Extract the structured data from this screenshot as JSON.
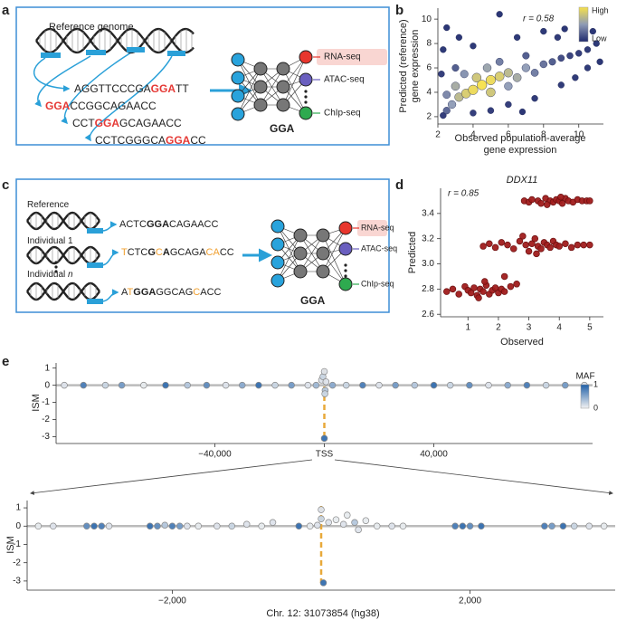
{
  "panels": {
    "a": {
      "letter": "a",
      "reference_label": "Reference genome",
      "sequences": [
        [
          {
            "text": "AGGTTCCCGA"
          },
          {
            "text": "GGA",
            "color": "#e53935",
            "bold": true
          },
          {
            "text": "TT"
          }
        ],
        [
          {
            "text": "GGA",
            "color": "#e53935",
            "bold": true
          },
          {
            "text": "CCGGCAGAACC"
          }
        ],
        [
          {
            "text": "CCT"
          },
          {
            "text": "GGA",
            "color": "#e53935",
            "bold": true
          },
          {
            "text": "GCAGAACC"
          }
        ],
        [
          {
            "text": "CCTCGGGCA"
          },
          {
            "text": "GGA",
            "color": "#e53935",
            "bold": true
          },
          {
            "text": "CC"
          }
        ]
      ],
      "outputs": [
        "RNA-seq",
        "ATAC-seq",
        "ChIp-seq"
      ],
      "output_colors": [
        "#e8362d",
        "#6a5fbf",
        "#2eaa4f"
      ],
      "logo": "GGA"
    },
    "c": {
      "letter": "c",
      "rows": [
        {
          "label": [
            {
              "text": "Reference"
            }
          ],
          "sequence": [
            {
              "text": "ACTC"
            },
            {
              "text": "GGA",
              "bold": true
            },
            {
              "text": "CAGAACC"
            }
          ]
        },
        {
          "label": [
            {
              "text": "Individual 1"
            }
          ],
          "sequence": [
            {
              "text": "T",
              "color": "#f0a030"
            },
            {
              "text": "CTC"
            },
            {
              "text": "G",
              "bold": true
            },
            {
              "text": "C",
              "color": "#f0a030"
            },
            {
              "text": "A",
              "bold": true
            },
            {
              "text": "GCAGA"
            },
            {
              "text": "CA",
              "color": "#f0a030"
            },
            {
              "text": "CC"
            }
          ]
        },
        {
          "label": [
            {
              "text": "Individual "
            },
            {
              "text": "n",
              "italic": true
            }
          ],
          "sequence": [
            {
              "text": "A"
            },
            {
              "text": "T",
              "color": "#f0a030"
            },
            {
              "text": "GGA",
              "bold": true
            },
            {
              "text": "GGCAG"
            },
            {
              "text": "C",
              "color": "#f0a030"
            },
            {
              "text": "ACC"
            }
          ]
        }
      ],
      "outputs": [
        "RNA-seq",
        "ATAC-seq",
        "ChIp-seq"
      ],
      "output_colors": [
        "#e8362d",
        "#6a5fbf",
        "#2eaa4f"
      ],
      "logo": "GGA"
    }
  },
  "chart_data": [
    {
      "type": "scatter",
      "panel_label": "b",
      "x_label": [
        "Observed population-average",
        "gene expression"
      ],
      "y_label": [
        "Predicted (reference)",
        "gene expression"
      ],
      "annotation": "r = 0.58",
      "xlim": [
        2,
        11.4
      ],
      "ylim": [
        1.4,
        10.9
      ],
      "xticks": [
        2,
        4,
        6,
        8,
        10
      ],
      "yticks": [
        2,
        4,
        6,
        8,
        10
      ],
      "colorbar": {
        "high": "High",
        "low": "Low",
        "colors": [
          "#1f2a6e",
          "#8e9bb5",
          "#f6e04b"
        ]
      },
      "x": [
        5.5,
        3.2,
        2.5,
        11.2,
        10.8,
        6.8,
        9.2,
        8,
        11,
        4,
        2.3,
        8.8,
        10.5,
        10.5,
        9.8,
        7.5,
        9,
        6.5,
        2.3,
        2.2,
        4,
        6,
        5,
        10,
        9.5,
        9,
        8.5,
        2.5,
        3,
        7,
        8,
        2.5,
        7.5,
        5.5,
        3.5,
        2.8,
        7,
        6,
        4.8,
        3,
        6.5,
        3.2,
        6,
        4.2,
        5,
        3.6,
        5.5,
        4,
        5,
        4.5
      ],
      "values": [
        10.4,
        8.5,
        9.3,
        6.5,
        9,
        2.4,
        9.2,
        9,
        8,
        7.8,
        7.5,
        8.5,
        7.5,
        6,
        5.2,
        3.5,
        4.6,
        8.5,
        2.1,
        5.5,
        2.3,
        3,
        2.5,
        7.2,
        7,
        6.8,
        6.5,
        2.5,
        6,
        7,
        6.3,
        3.8,
        5.6,
        6.5,
        5.5,
        3,
        6,
        4.5,
        6,
        4.5,
        5.2,
        3.6,
        5.6,
        5.2,
        4,
        3.9,
        5.3,
        4.2,
        5,
        4.6
      ],
      "density": [
        0.01,
        0.01,
        0.01,
        0.01,
        0.01,
        0.01,
        0.01,
        0.02,
        0.02,
        0.02,
        0.02,
        0.03,
        0.03,
        0.03,
        0.03,
        0.03,
        0.03,
        0.02,
        0.05,
        0.05,
        0.05,
        0.05,
        0.05,
        0.05,
        0.08,
        0.12,
        0.2,
        0.25,
        0.2,
        0.2,
        0.3,
        0.4,
        0.35,
        0.35,
        0.45,
        0.5,
        0.5,
        0.5,
        0.55,
        0.6,
        0.6,
        0.7,
        0.7,
        0.8,
        0.8,
        0.85,
        0.85,
        0.95,
        0.95,
        1
      ]
    },
    {
      "type": "scatter",
      "panel_label": "d",
      "title": "DDX11",
      "x_label": [
        "Observed"
      ],
      "y_label": [
        "Predicted"
      ],
      "annotation": "r = 0.85",
      "color": "#a01c1c",
      "xlim": [
        0.1,
        5.45
      ],
      "ylim": [
        2.58,
        3.6
      ],
      "xticks": [
        1,
        2,
        3,
        4,
        5
      ],
      "yticks": [
        2.6,
        2.8,
        {
          "value": 3,
          "label": "3.0"
        },
        3.2,
        3.4
      ],
      "x": [
        2.85,
        3.0,
        3.1,
        3.3,
        3.4,
        3.55,
        3.7,
        3.8,
        3.9,
        4.0,
        4.1,
        4.2,
        4.3,
        4.45,
        4.6,
        4.75,
        4.9,
        5.0,
        3.6,
        4.05,
        1.5,
        1.7,
        1.9,
        2.1,
        2.3,
        2.5,
        2.7,
        2.9,
        3.0,
        3.1,
        3.2,
        3.3,
        3.4,
        3.5,
        3.6,
        3.7,
        3.8,
        3.9,
        4.0,
        4.2,
        4.4,
        4.6,
        4.8,
        5.0,
        3.25,
        2.8,
        0.3,
        0.5,
        0.7,
        0.9,
        1.0,
        1.1,
        1.2,
        1.3,
        1.4,
        1.5,
        1.6,
        1.7,
        1.8,
        1.9,
        2.0,
        2.1,
        2.2,
        2.4,
        2.6,
        1.35,
        1.55,
        2.2
      ],
      "values": [
        3.5,
        3.49,
        3.51,
        3.5,
        3.48,
        3.52,
        3.5,
        3.49,
        3.51,
        3.5,
        3.48,
        3.52,
        3.5,
        3.49,
        3.51,
        3.5,
        3.5,
        3.5,
        3.47,
        3.53,
        3.14,
        3.16,
        3.13,
        3.17,
        3.15,
        3.12,
        3.18,
        3.15,
        3.1,
        3.16,
        3.2,
        3.14,
        3.12,
        3.17,
        3.15,
        3.13,
        3.18,
        3.15,
        3.14,
        3.16,
        3.13,
        3.15,
        3.15,
        3.15,
        3.08,
        3.22,
        2.78,
        2.8,
        2.76,
        2.82,
        2.79,
        2.77,
        2.81,
        2.75,
        2.8,
        2.78,
        2.83,
        2.76,
        2.79,
        2.81,
        2.77,
        2.8,
        2.9,
        2.82,
        2.84,
        2.73,
        2.86,
        2.78
      ]
    },
    {
      "type": "scatter",
      "panel_label": "e",
      "y_label": [
        "ISM"
      ],
      "xlim": [
        -98000,
        98000
      ],
      "ylim": [
        -3.4,
        1.3
      ],
      "xticks": [
        {
          "value": -40000,
          "label": "−40,000"
        },
        {
          "value": 0,
          "label": "TSS"
        },
        {
          "value": 40000,
          "label": "40,000"
        }
      ],
      "yticks": [
        -3,
        -2,
        -1,
        0,
        1
      ],
      "colorbar": {
        "title": "MAF",
        "ticks": [
          0,
          1
        ],
        "colors": [
          "#f2f2f2",
          "#1f5fa8"
        ]
      },
      "x": [
        -95000,
        -88000,
        -80000,
        -74000,
        -66000,
        -58000,
        -50000,
        -43000,
        -36000,
        -30000,
        -24000,
        -18000,
        -12000,
        -6000,
        -3000,
        -1000,
        -500,
        0,
        300,
        600,
        0,
        200,
        3000,
        8000,
        14000,
        20000,
        26000,
        33000,
        40000,
        46000,
        53000,
        60000,
        67000,
        74000,
        81000,
        88000,
        95000
      ],
      "values": [
        0,
        0,
        0,
        0,
        0,
        0,
        0,
        0,
        0,
        0,
        0,
        0,
        0,
        0,
        0,
        0.3,
        0.5,
        0.8,
        -0.3,
        0.2,
        -3.1,
        -0.5,
        0,
        0,
        0,
        0,
        0,
        0,
        0,
        0,
        0,
        0,
        0,
        0,
        0,
        0,
        0
      ],
      "maf": [
        0.1,
        0.8,
        0.2,
        0.6,
        0.05,
        0.9,
        0.3,
        0.7,
        0.1,
        0.5,
        0.9,
        0.2,
        0.6,
        0.1,
        0.4,
        0.1,
        0.2,
        0.1,
        0.3,
        0.1,
        0.9,
        0.2,
        0.5,
        0.2,
        0.8,
        0.1,
        0.6,
        0.3,
        0.9,
        0.2,
        0.7,
        0.1,
        0.5,
        0.8,
        0.2,
        0.6,
        0.1
      ]
    },
    {
      "type": "scatter",
      "y_label": [
        "ISM"
      ],
      "x_label": [
        "Chr. 12: 31073854 (hg38)"
      ],
      "xlim": [
        -3950,
        3950
      ],
      "ylim": [
        -3.5,
        1.4
      ],
      "xticks": [
        {
          "value": -2000,
          "label": "−2,000"
        },
        {
          "value": 2000,
          "label": "2,000"
        }
      ],
      "yticks": [
        -3,
        -2,
        -1,
        0,
        1
      ],
      "colorbar_colors": [
        "#f2f2f2",
        "#1f5fa8"
      ],
      "x": [
        -3800,
        -3600,
        -3150,
        -3050,
        -2950,
        -2850,
        -2300,
        -2200,
        -2100,
        -2000,
        -1900,
        -1800,
        -1650,
        -1400,
        -1200,
        -1000,
        -800,
        -650,
        -300,
        -150,
        -50,
        0,
        0,
        30,
        100,
        200,
        300,
        350,
        450,
        500,
        600,
        750,
        950,
        1100,
        1800,
        1900,
        2000,
        2150,
        3000,
        3100,
        3250,
        3400,
        3600,
        3800
      ],
      "values": [
        0,
        0,
        0,
        0,
        0,
        0,
        0,
        0,
        0.05,
        0,
        0,
        0,
        0,
        0,
        0,
        0.1,
        0,
        0.2,
        0,
        0,
        0.05,
        0.9,
        0.4,
        -3.1,
        0.2,
        0.35,
        0.1,
        0.6,
        0.2,
        -0.2,
        0.3,
        0,
        0,
        0,
        0,
        0,
        0,
        0,
        0,
        0,
        0,
        0,
        0,
        0
      ],
      "maf": [
        0.05,
        0.1,
        0.7,
        0.9,
        0.8,
        0.1,
        0.9,
        0.7,
        0.3,
        0.8,
        0.6,
        0.1,
        0.05,
        0.1,
        0.2,
        0.1,
        0.05,
        0.1,
        0.9,
        0.05,
        0.1,
        0.1,
        0.2,
        0.9,
        0.1,
        0.05,
        0.1,
        0.05,
        0.3,
        0.1,
        0.05,
        0.05,
        0.1,
        0.05,
        0.8,
        0.9,
        0.7,
        0.9,
        0.8,
        0.6,
        0.9,
        0.2,
        0.1,
        0.05
      ]
    }
  ]
}
